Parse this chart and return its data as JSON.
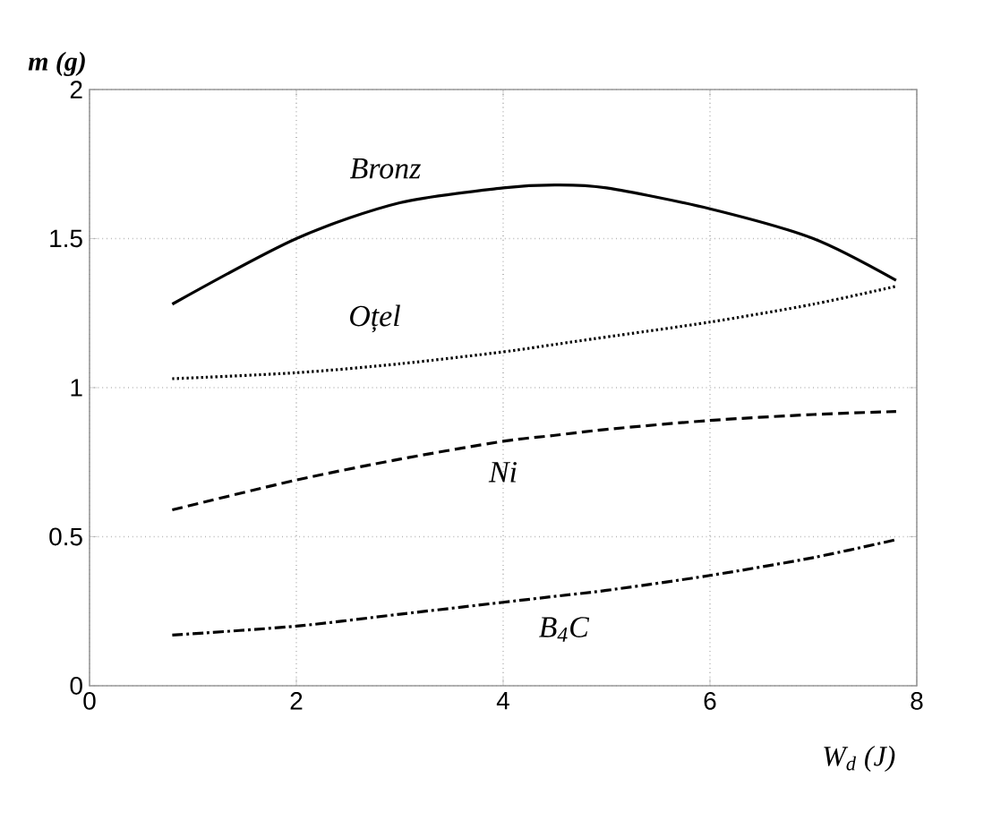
{
  "chart_data": {
    "type": "line",
    "xlabel": "W$_{d}$ (J)",
    "ylabel": "m (g)",
    "xlim": [
      0,
      8
    ],
    "ylim": [
      0,
      2
    ],
    "xticks": [
      0,
      2,
      4,
      6,
      8
    ],
    "yticks": [
      0,
      0.5,
      1,
      1.5,
      2
    ],
    "grid": true,
    "x": [
      0.8,
      2,
      3,
      4,
      4.5,
      5,
      6,
      7,
      7.8
    ],
    "series": [
      {
        "name": "Bronz",
        "color": "#000000",
        "line_style": "solid",
        "values": [
          1.28,
          1.5,
          1.62,
          1.67,
          1.68,
          1.67,
          1.6,
          1.5,
          1.36
        ]
      },
      {
        "name": "Oțel",
        "color": "#000000",
        "line_style": "dotted",
        "values": [
          1.03,
          1.05,
          1.08,
          1.12,
          1.145,
          1.17,
          1.22,
          1.28,
          1.34
        ]
      },
      {
        "name": "Ni",
        "color": "#000000",
        "line_style": "dashed",
        "values": [
          0.59,
          0.69,
          0.76,
          0.82,
          0.84,
          0.86,
          0.89,
          0.91,
          0.92
        ]
      },
      {
        "name": "B$_{4}$C",
        "color": "#000000",
        "line_style": "dashdot",
        "values": [
          0.17,
          0.2,
          0.24,
          0.28,
          0.3,
          0.32,
          0.37,
          0.43,
          0.49
        ]
      }
    ]
  }
}
